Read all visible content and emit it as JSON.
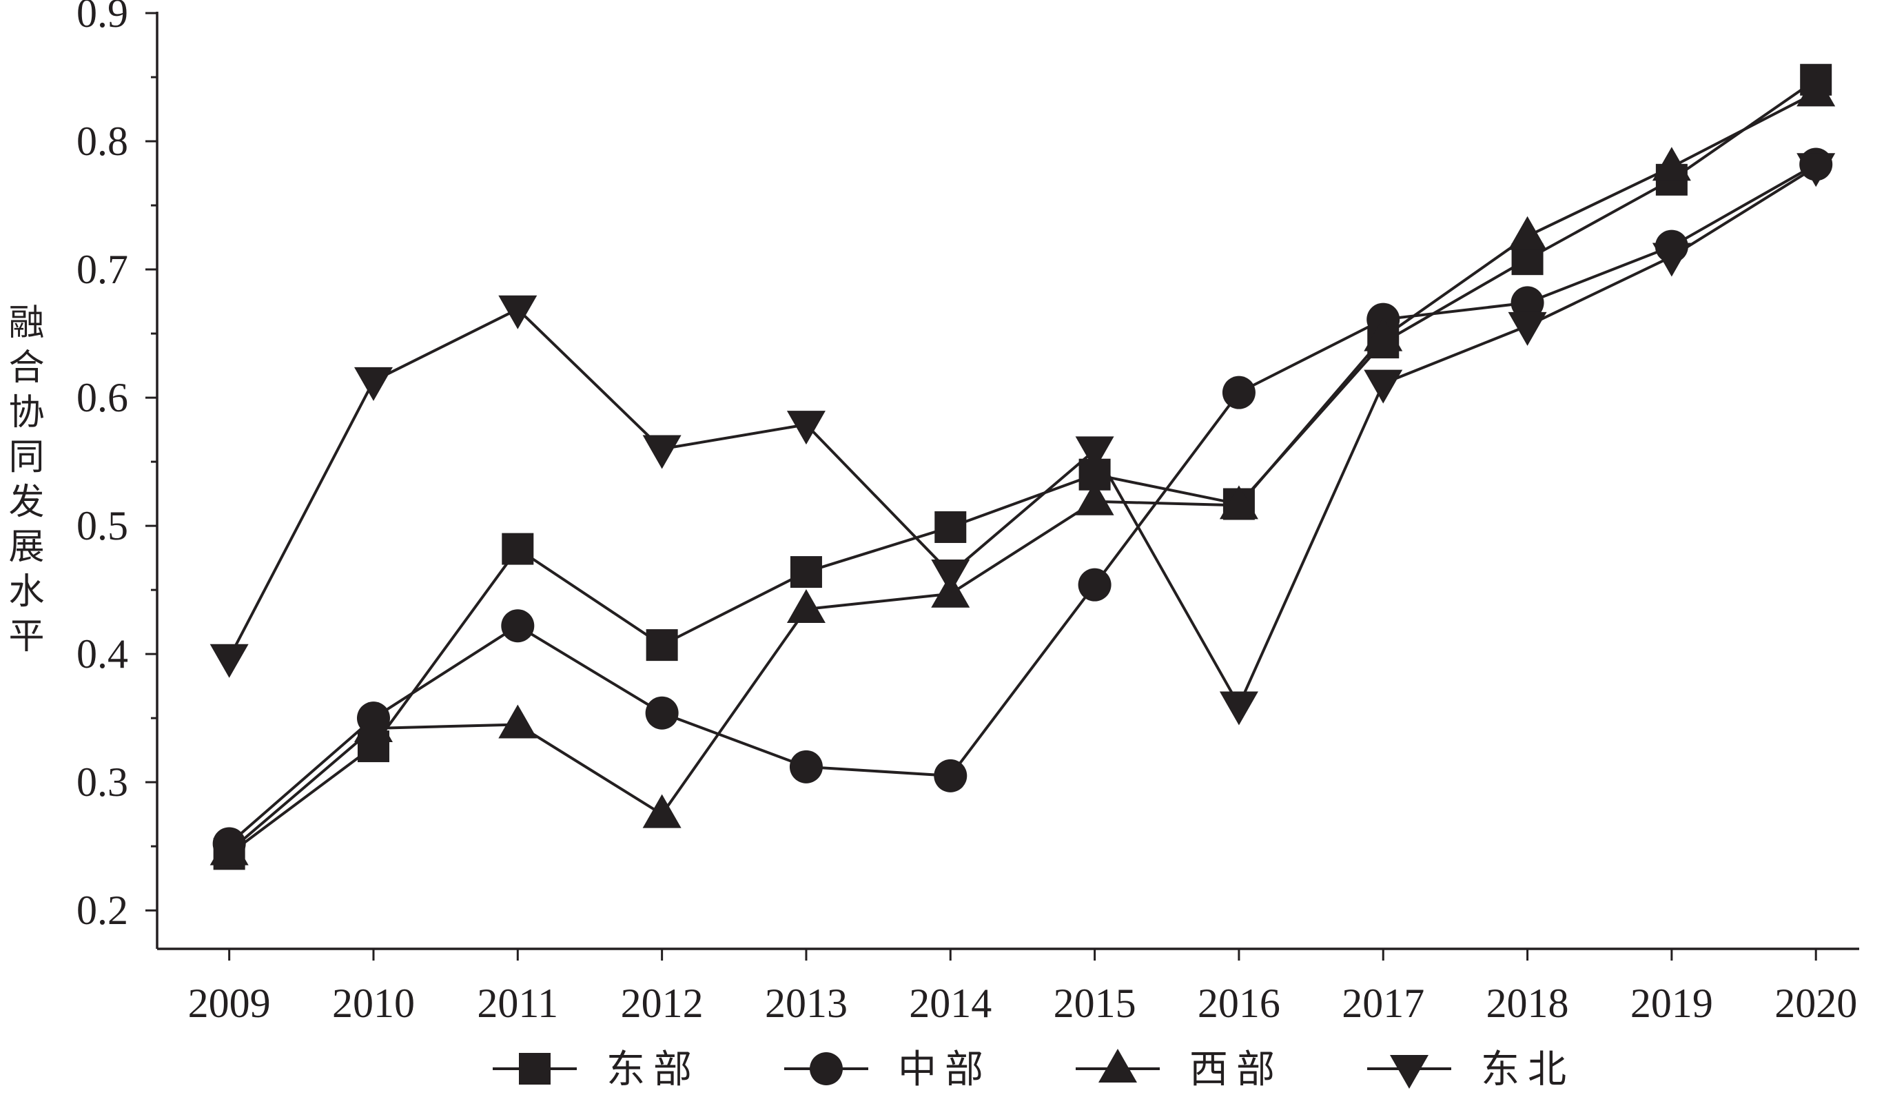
{
  "chart_data": {
    "type": "line",
    "title": "",
    "xlabel": "",
    "ylabel": "融合协同发展水平",
    "x": [
      2009,
      2010,
      2011,
      2012,
      2013,
      2014,
      2015,
      2016,
      2017,
      2018,
      2019,
      2020
    ],
    "xlim": [
      2008.5,
      2020.3
    ],
    "y_ticks": [
      0.2,
      0.3,
      0.4,
      0.5,
      0.6,
      0.7,
      0.8,
      0.9
    ],
    "ylim": [
      0.17,
      0.9
    ],
    "grid": false,
    "legend_position": "bottom",
    "series": [
      {
        "name": "东部",
        "marker": "square",
        "values": [
          0.244,
          0.328,
          0.482,
          0.407,
          0.464,
          0.499,
          0.54,
          0.517,
          0.643,
          0.708,
          0.77,
          0.848
        ]
      },
      {
        "name": "中部",
        "marker": "circle",
        "values": [
          0.252,
          0.35,
          0.422,
          0.354,
          0.312,
          0.305,
          0.454,
          0.604,
          0.661,
          0.674,
          0.718,
          0.782
        ]
      },
      {
        "name": "西部",
        "marker": "triangle-up",
        "values": [
          0.246,
          0.342,
          0.345,
          0.275,
          0.435,
          0.447,
          0.519,
          0.516,
          0.647,
          0.726,
          0.78,
          0.838
        ]
      },
      {
        "name": "东北",
        "marker": "triangle-down",
        "values": [
          0.397,
          0.613,
          0.669,
          0.56,
          0.579,
          0.463,
          0.559,
          0.36,
          0.611,
          0.656,
          0.71,
          0.78
        ]
      }
    ]
  },
  "colors": {
    "ink": "#231f20",
    "background": "#ffffff"
  }
}
